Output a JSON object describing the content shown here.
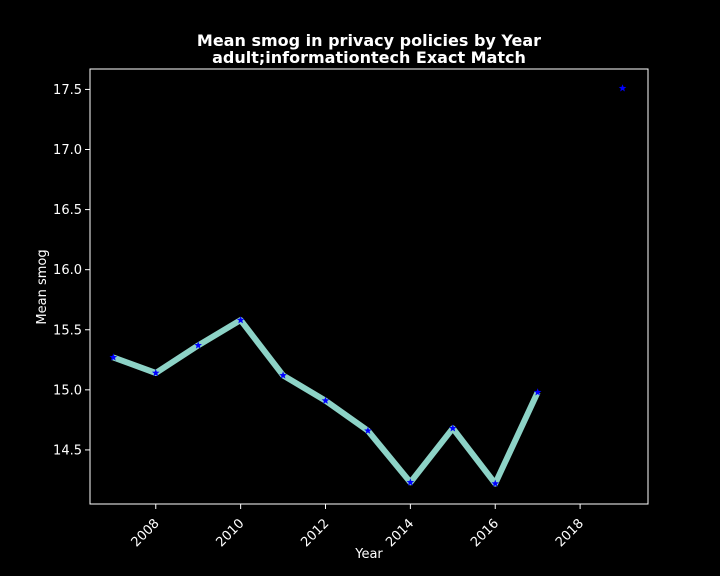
{
  "chart_data": {
    "type": "line",
    "title": "Mean smog in privacy policies by Year",
    "subtitle": "adult;informationtech Exact Match",
    "xlabel": "Year",
    "ylabel": "Mean smog",
    "xlim": [
      2006.45,
      2019.6
    ],
    "ylim": [
      14.05,
      17.67
    ],
    "x_ticks": [
      2008,
      2010,
      2012,
      2014,
      2016,
      2018
    ],
    "y_ticks": [
      14.5,
      15.0,
      15.5,
      16.0,
      16.5,
      17.0,
      17.5
    ],
    "x_tick_labels": [
      "2008",
      "2010",
      "2012",
      "2014",
      "2016",
      "2018"
    ],
    "y_tick_labels": [
      "14.5",
      "15.0",
      "15.5",
      "16.0",
      "16.5",
      "17.0",
      "17.5"
    ],
    "grid": false,
    "series": [
      {
        "x": [
          2007,
          2008,
          2009,
          2010,
          2011,
          2012,
          2013,
          2014,
          2015,
          2016,
          2017,
          2019
        ],
        "values": [
          15.27,
          15.14,
          15.37,
          15.58,
          15.12,
          14.91,
          14.66,
          14.23,
          14.68,
          14.22,
          14.98,
          17.51
        ],
        "line_break_before_last": true,
        "line_color": "#8dd3c7",
        "marker": "star",
        "marker_color": "#0000ff"
      }
    ]
  }
}
